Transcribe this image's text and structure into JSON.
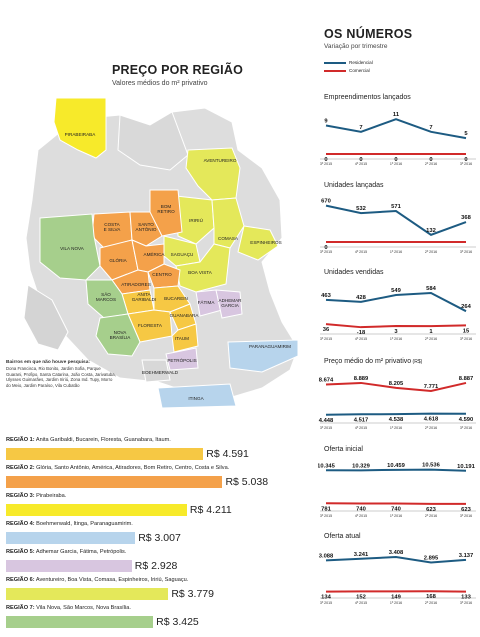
{
  "map": {
    "title": "PREÇO POR REGIÃO",
    "subtitle": "Valores médios do m² privativo",
    "no_survey_title": "Bairros em que não houve pesquisa:",
    "no_survey_text": "Dona Francisca, Rio Bonito, Jardim Sofia, Parque Guarani, Profipo, Santa Catarina, João Costa, Jarivatuba, Ulysses Guimarães, Jardim Iririú, Zona Ind. Tupy, Morro do Meio, Jardim Paraíso, Vila Cubatão",
    "neighborhoods": [
      {
        "name": "PIRABEIRABA"
      },
      {
        "name": "AVENTUREIRO"
      },
      {
        "name": "BOM RETIRO"
      },
      {
        "name": "COSTA E SILVA"
      },
      {
        "name": "SANTO ANTÔNIO"
      },
      {
        "name": "IRIRIÚ"
      },
      {
        "name": "COMASA"
      },
      {
        "name": "ESPINHEIROS"
      },
      {
        "name": "VILA NOVA"
      },
      {
        "name": "GLÓRIA"
      },
      {
        "name": "AMÉRICA"
      },
      {
        "name": "SAGUAÇU"
      },
      {
        "name": "CENTRO"
      },
      {
        "name": "BOA VISTA"
      },
      {
        "name": "ATIRADORES"
      },
      {
        "name": "ANITA GARIBALDI"
      },
      {
        "name": "SÃO MARCOS"
      },
      {
        "name": "BUCAREIN"
      },
      {
        "name": "FÁTIMA"
      },
      {
        "name": "ADHEMAR GARCIA"
      },
      {
        "name": "GUANABARA"
      },
      {
        "name": "FLORESTA"
      },
      {
        "name": "NOVA BRASÍLIA"
      },
      {
        "name": "ITAUM"
      },
      {
        "name": "PETRÓPOLIS"
      },
      {
        "name": "PARANAGUAMIRIM"
      },
      {
        "name": "BOEHMERWALD"
      },
      {
        "name": "ITINGA"
      }
    ]
  },
  "right": {
    "title": "OS NÚMEROS",
    "subtitle": "Variação por trimestre",
    "legend": [
      {
        "label": "Residencial",
        "color": "#1d5b82"
      },
      {
        "label": "Comercial",
        "color": "#d12a2a"
      }
    ]
  },
  "chart_data": [
    {
      "type": "bar",
      "orientation": "horizontal",
      "categories": [
        "REGIÃO 1",
        "REGIÃO 2",
        "REGIÃO 3",
        "REGIÃO 4",
        "REGIÃO 5",
        "REGIÃO 6",
        "REGIÃO 7"
      ],
      "descriptions": [
        "Anita Garibaldi, Bucarein, Floresta, Guanabara, Itaum.",
        "Glória, Santo Antônio, América, Atiradores, Bom Retiro, Centro, Costa e Silva.",
        "Pirabeiraba.",
        "Boehmerwald, Itinga, Paranaguamirim.",
        "Adhemar Garcia, Fátima, Petrópolis.",
        "Aventureiro, Boa Vista, Comasa, Espinheiros, Iririú, Saguaçu.",
        "Vila Nova, São Marcos, Nova Brasília."
      ],
      "values": [
        4591,
        5038,
        4211,
        3007,
        2928,
        3779,
        3425
      ],
      "value_labels": [
        "R$ 4.591",
        "R$ 5.038",
        "R$ 4.211",
        "R$ 3.007",
        "R$ 2.928",
        "R$ 3.779",
        "R$ 3.425"
      ],
      "colors": [
        "#f6c844",
        "#f4a14a",
        "#f7ea2a",
        "#b7d4ec",
        "#d8c6e0",
        "#e4e85a",
        "#a6cf8c"
      ]
    },
    {
      "type": "line",
      "title": "Empreendimentos lançados",
      "title_suffix": "",
      "categories": [
        "3º 2015",
        "4º 2015",
        "1º 2016",
        "2º 2016",
        "3º 2016"
      ],
      "series": [
        {
          "name": "Residencial",
          "values": [
            9,
            7,
            11,
            7,
            5
          ],
          "labels": [
            "9",
            "7",
            "11",
            "7",
            "5"
          ]
        },
        {
          "name": "Comercial",
          "values": [
            0,
            0,
            0,
            0,
            0
          ],
          "labels": [
            "0",
            "0",
            "0",
            "0",
            "0"
          ]
        }
      ],
      "ylim": [
        0,
        12
      ]
    },
    {
      "type": "line",
      "title": "Unidades lançadas",
      "title_suffix": "",
      "categories": [
        "3º 2015",
        "4º 2015",
        "1º 2016",
        "2º 2016",
        "3º 2016"
      ],
      "series": [
        {
          "name": "Residencial",
          "values": [
            670,
            532,
            571,
            132,
            368
          ],
          "labels": [
            "670",
            "532",
            "571",
            "132",
            "368"
          ]
        },
        {
          "name": "Comercial",
          "values": [
            0,
            0,
            0,
            0,
            0
          ],
          "labels": [
            "0",
            "",
            "",
            "",
            ""
          ]
        }
      ],
      "ylim": [
        0,
        700
      ]
    },
    {
      "type": "line",
      "title": "Unidades vendidas",
      "title_suffix": "",
      "categories": [
        "3º 2015",
        "4º 2015",
        "1º 2016",
        "2º 2016",
        "3º 2016"
      ],
      "series": [
        {
          "name": "Residencial",
          "values": [
            463,
            428,
            549,
            584,
            264
          ],
          "labels": [
            "463",
            "428",
            "549",
            "584",
            "264"
          ]
        },
        {
          "name": "Comercial",
          "values": [
            36,
            -18,
            3,
            1,
            15
          ],
          "labels": [
            "36",
            "-18",
            "3",
            "1",
            "15"
          ]
        }
      ],
      "ylim": [
        -50,
        620
      ]
    },
    {
      "type": "line",
      "title": "Preço médio do m² privativo",
      "title_suffix": "(R$)",
      "categories": [
        "3º 2015",
        "4º 2015",
        "1º 2016",
        "2º 2016",
        "3º 2016"
      ],
      "series": [
        {
          "name": "Residencial",
          "values": [
            4448,
            4517,
            4538,
            4618,
            4590
          ],
          "labels": [
            "4.448",
            "4.517",
            "4.538",
            "4.618",
            "4.590"
          ]
        },
        {
          "name": "Comercial",
          "values": [
            8674,
            8889,
            8205,
            7771,
            8887
          ],
          "labels": [
            "8.674",
            "8.889",
            "8.205",
            "7.771",
            "8.887"
          ]
        }
      ],
      "ylim": [
        4000,
        9300
      ]
    },
    {
      "type": "line",
      "title": "Oferta inicial",
      "title_suffix": "",
      "categories": [
        "3º 2015",
        "4º 2015",
        "1º 2016",
        "2º 2016",
        "3º 2016"
      ],
      "series": [
        {
          "name": "Residencial",
          "values": [
            10345,
            10329,
            10459,
            10536,
            10191
          ],
          "labels": [
            "10.345",
            "10.329",
            "10.459",
            "10.536",
            "10.191"
          ]
        },
        {
          "name": "Comercial",
          "values": [
            781,
            740,
            740,
            623,
            623
          ],
          "labels": [
            "781",
            "740",
            "740",
            "623",
            "623"
          ]
        }
      ],
      "ylim": [
        0,
        11000
      ]
    },
    {
      "type": "line",
      "title": "Oferta atual",
      "title_suffix": "",
      "categories": [
        "3º 2015",
        "4º 2015",
        "1º 2016",
        "2º 2016",
        "3º 2016"
      ],
      "series": [
        {
          "name": "Residencial",
          "values": [
            3088,
            3241,
            3408,
            2895,
            3137
          ],
          "labels": [
            "3.088",
            "3.241",
            "3.408",
            "2.895",
            "3.137"
          ]
        },
        {
          "name": "Comercial",
          "values": [
            134,
            152,
            149,
            168,
            133
          ],
          "labels": [
            "134",
            "152",
            "149",
            "168",
            "133"
          ]
        }
      ],
      "ylim": [
        0,
        3600
      ]
    }
  ]
}
